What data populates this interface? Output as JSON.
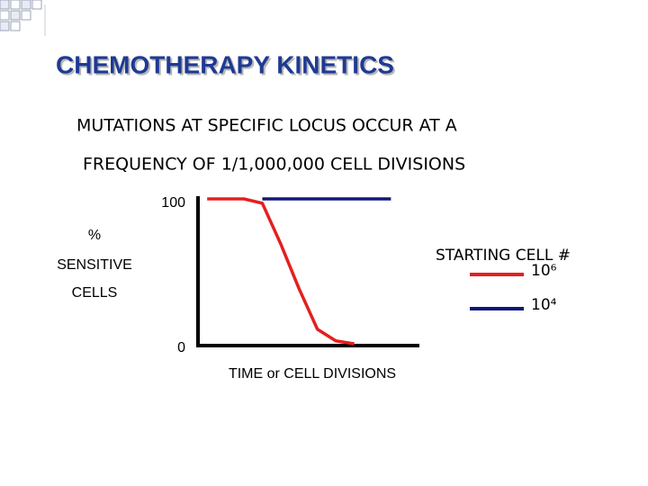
{
  "chart_data": {
    "type": "line",
    "title": "CHEMOTHERAPY KINETICS",
    "subtitle": [
      "MUTATIONS AT SPECIFIC LOCUS OCCUR AT A",
      "FREQUENCY OF 1/1,000,000 CELL DIVISIONS"
    ],
    "y_label": [
      "%",
      "SENSITIVE",
      "CELLS"
    ],
    "x_label": "TIME or CELL DIVISIONS",
    "legend_title": "STARTING CELL #",
    "categories": [
      null,
      null,
      null,
      null,
      null,
      null,
      null,
      null,
      null,
      null,
      null,
      null
    ],
    "series": [
      {
        "name": "10⁶",
        "color": "#e32020",
        "values": [
          100,
          100,
          100,
          97,
          69,
          38,
          10,
          2,
          0,
          null,
          null,
          null
        ]
      },
      {
        "name": "10⁴",
        "color": "#10187a",
        "values": [
          null,
          null,
          null,
          100,
          100,
          100,
          100,
          100,
          100,
          100,
          100,
          null
        ]
      }
    ],
    "ylim": [
      0,
      100
    ],
    "yticks": [
      0,
      100
    ],
    "grid": false
  }
}
